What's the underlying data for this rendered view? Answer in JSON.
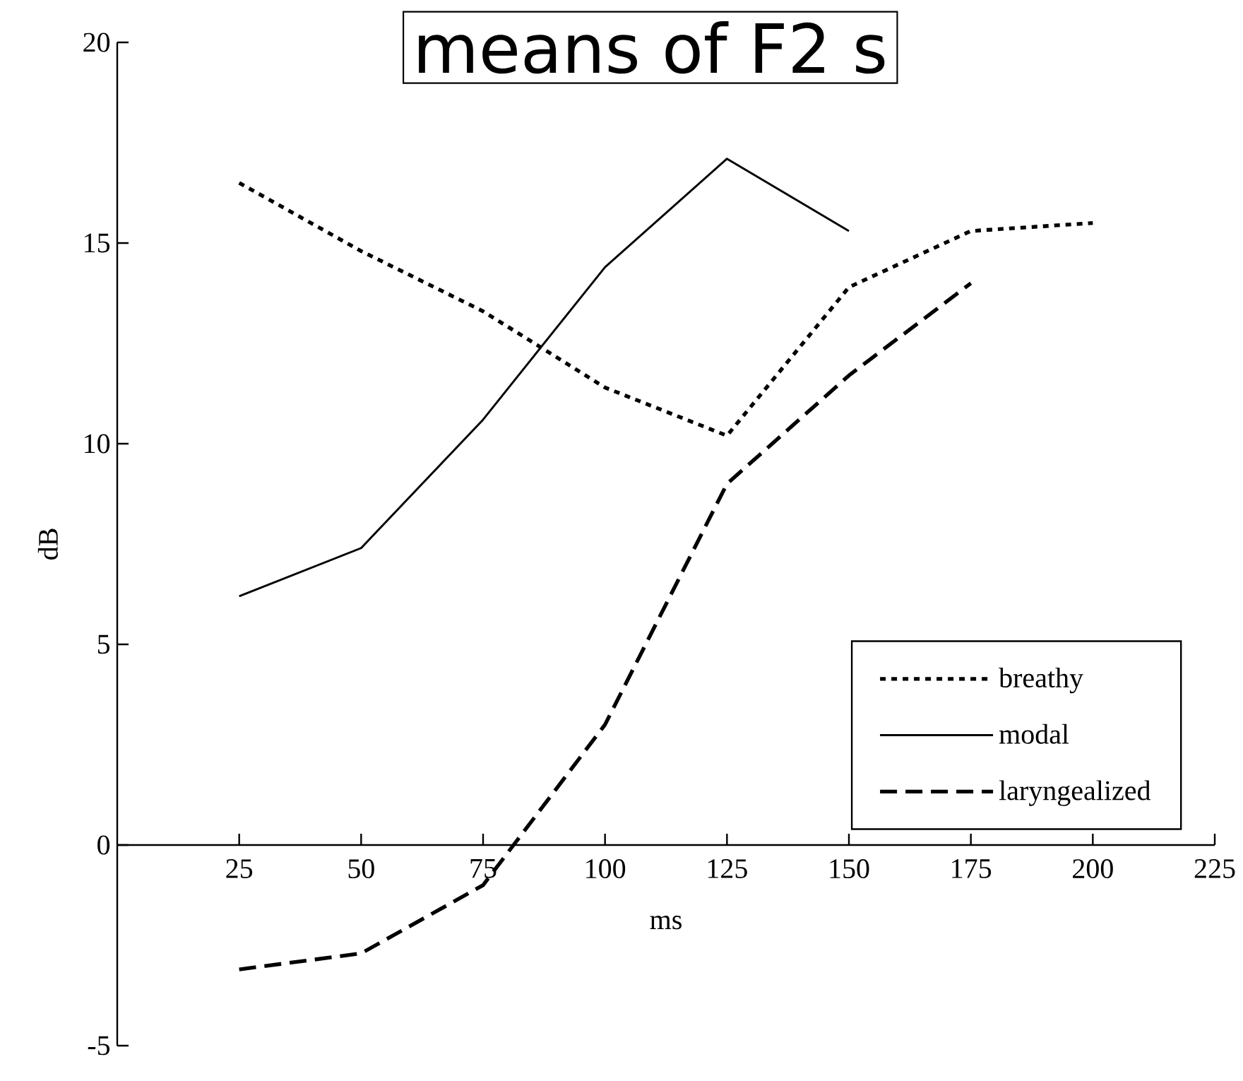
{
  "chart_data": {
    "type": "line",
    "title": "means of F2 s",
    "xlabel": "ms",
    "ylabel": "dB",
    "xlim": [
      0,
      225
    ],
    "xticks": [
      25,
      50,
      75,
      100,
      125,
      150,
      175,
      200,
      225
    ],
    "ylim": [
      -5,
      20
    ],
    "yticks": [
      -5,
      0,
      5,
      10,
      15,
      20
    ],
    "legend": "bottom right",
    "grid": false,
    "series": [
      {
        "name": "breathy",
        "color": "#000000",
        "line_style": "dotted",
        "x": [
          25,
          50,
          75,
          100,
          125,
          150,
          175,
          200
        ],
        "values": [
          16.5,
          14.8,
          13.3,
          11.4,
          10.2,
          13.9,
          15.3,
          15.5
        ]
      },
      {
        "name": "modal",
        "color": "#000000",
        "line_style": "solid",
        "x": [
          25,
          50,
          75,
          100,
          125,
          150
        ],
        "values": [
          6.2,
          7.4,
          10.6,
          14.4,
          17.1,
          15.3
        ]
      },
      {
        "name": "laryngealized",
        "color": "#000000",
        "line_style": "dashed",
        "x": [
          25,
          50,
          75,
          100,
          125,
          150,
          175
        ],
        "values": [
          -3.1,
          -2.7,
          -1.0,
          3.0,
          9.0,
          11.7,
          14.0
        ]
      }
    ]
  }
}
